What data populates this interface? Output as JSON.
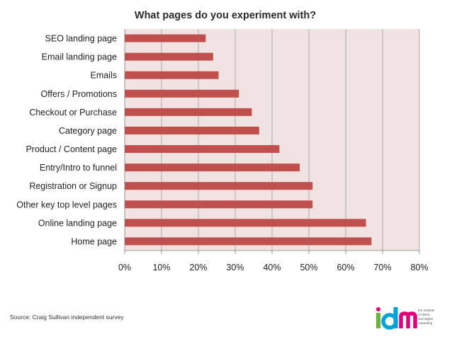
{
  "chart_data": {
    "type": "bar",
    "orientation": "horizontal",
    "title": "What pages do you experiment with?",
    "xlabel": "",
    "ylabel": "",
    "categories": [
      "SEO landing page",
      "Email landing page",
      "Emails",
      "Offers / Promotions",
      "Checkout or Purchase",
      "Category page",
      "Product / Content page",
      "Entry/Intro to funnel",
      "Registration or Signup",
      "Other key top level pages",
      "Online landing page",
      "Home page"
    ],
    "values": [
      22,
      24,
      25.5,
      31,
      34.5,
      36.5,
      42,
      47.5,
      51,
      51,
      65.5,
      67
    ],
    "xlim": [
      0,
      80
    ],
    "ticks": [
      "0%",
      "10%",
      "20%",
      "30%",
      "40%",
      "50%",
      "60%",
      "70%",
      "80%"
    ],
    "grid": true,
    "bar_color": "#c0504d",
    "plot_background": "#f2e3e3"
  },
  "footer": {
    "source": "Source: Craig Sullivan independent survey"
  },
  "logo": {
    "wordmark": "idm",
    "tagline": "the institute of direct and digital marketing"
  }
}
